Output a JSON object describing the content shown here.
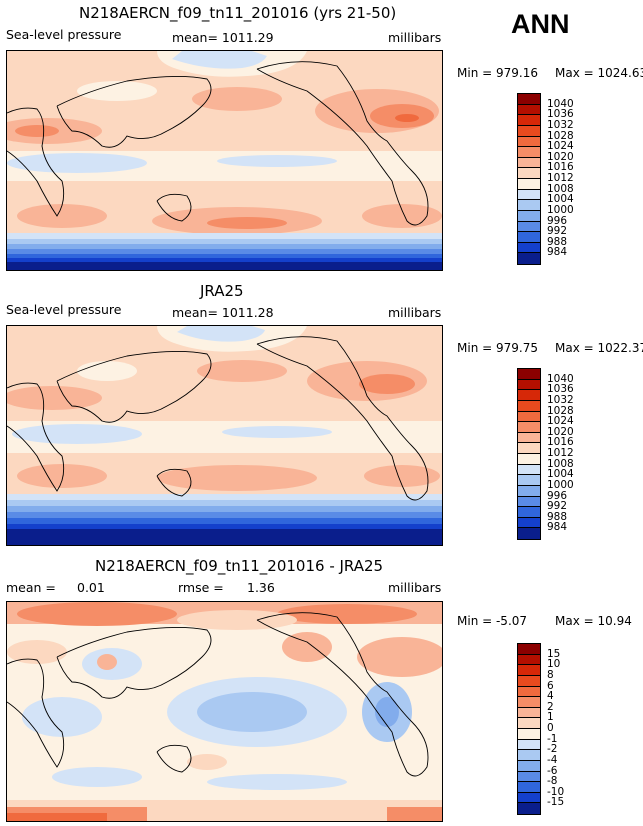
{
  "season": "ANN",
  "panels": [
    {
      "title": "N218AERCN_f09_tn11_201016 (yrs 21-50)",
      "variable": "Sea-level pressure",
      "stat_text": "mean= 1011.29",
      "units": "millibars",
      "min_label": "Min = 979.16",
      "max_label": "Max = 1024.63"
    },
    {
      "title": "JRA25",
      "variable": "Sea-level pressure",
      "stat_text": "mean= 1011.28",
      "units": "millibars",
      "min_label": "Min = 979.75",
      "max_label": "Max = 1022.37"
    },
    {
      "title": "N218AERCN_f09_tn11_201016 - JRA25",
      "mean_label": "mean =",
      "mean_value": "0.01",
      "rmse_label": "rmse =",
      "rmse_value": "1.36",
      "units": "millibars",
      "min_label": "Min =  -5.07",
      "max_label": "Max =  10.94"
    }
  ],
  "colorbars": {
    "slp": {
      "levels": [
        "1040",
        "1036",
        "1032",
        "1028",
        "1024",
        "1020",
        "1016",
        "1012",
        "1008",
        "1004",
        "1000",
        "996",
        "992",
        "988",
        "984"
      ],
      "colors": [
        "#8b0000",
        "#b40f00",
        "#d62808",
        "#e84a1e",
        "#f06a3e",
        "#f58d67",
        "#f9b497",
        "#fcd8c0",
        "#fdf2e3",
        "#d3e3f7",
        "#aac9f2",
        "#82acec",
        "#5a8be6",
        "#3066dc",
        "#1440cc",
        "#0a1e8c"
      ]
    },
    "diff": {
      "levels": [
        "15",
        "10",
        "8",
        "6",
        "4",
        "2",
        "1",
        "0",
        "-1",
        "-2",
        "-4",
        "-6",
        "-8",
        "-10",
        "-15"
      ],
      "colors": [
        "#8b0000",
        "#b40f00",
        "#d62808",
        "#e84a1e",
        "#f06a3e",
        "#f58d67",
        "#f9b497",
        "#fcd8c0",
        "#fdf2e3",
        "#d3e3f7",
        "#aac9f2",
        "#82acec",
        "#5a8be6",
        "#3066dc",
        "#1440cc",
        "#0a1e8c"
      ]
    }
  },
  "chart_data": [
    {
      "type": "heatmap",
      "title": "N218AERCN_f09_tn11_201016 (yrs 21-50)",
      "variable": "Sea-level pressure",
      "units": "millibars",
      "mean": 1011.29,
      "min": 979.16,
      "max": 1024.63,
      "contour_levels": [
        984,
        988,
        992,
        996,
        1000,
        1004,
        1008,
        1012,
        1016,
        1020,
        1024,
        1028,
        1032,
        1036,
        1040
      ],
      "projection": "cylindrical equidistant, centered on Pacific"
    },
    {
      "type": "heatmap",
      "title": "JRA25",
      "variable": "Sea-level pressure",
      "units": "millibars",
      "mean": 1011.28,
      "min": 979.75,
      "max": 1022.37,
      "contour_levels": [
        984,
        988,
        992,
        996,
        1000,
        1004,
        1008,
        1012,
        1016,
        1020,
        1024,
        1028,
        1032,
        1036,
        1040
      ]
    },
    {
      "type": "heatmap",
      "title": "N218AERCN_f09_tn11_201016 - JRA25",
      "units": "millibars",
      "mean": 0.01,
      "rmse": 1.36,
      "min": -5.07,
      "max": 10.94,
      "contour_levels": [
        -15,
        -10,
        -8,
        -6,
        -4,
        -2,
        -1,
        0,
        1,
        2,
        4,
        6,
        8,
        10,
        15
      ]
    }
  ]
}
